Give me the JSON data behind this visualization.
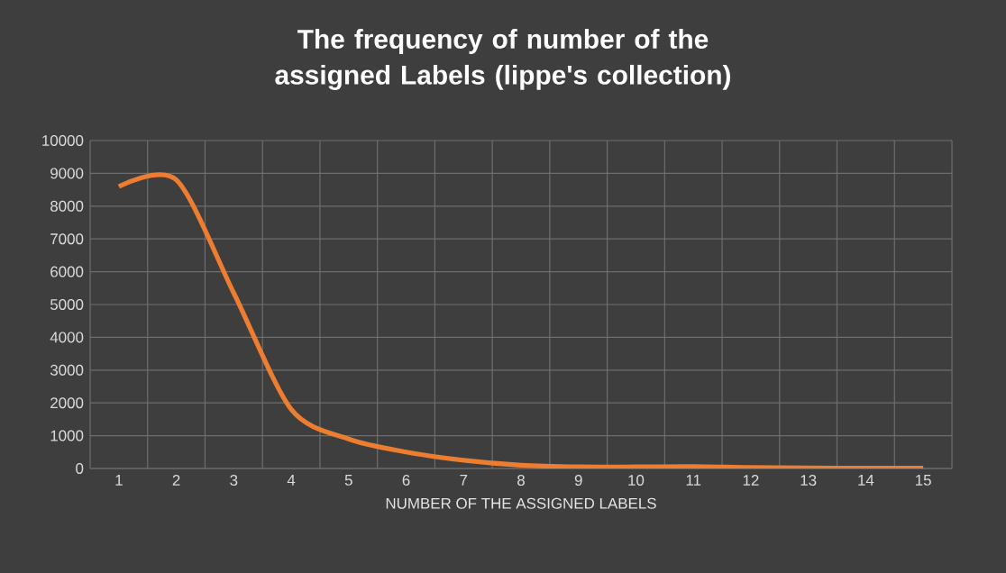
{
  "chart_data": {
    "type": "line",
    "title": "The frequency of number of the assigned Labels (lippe's collection)",
    "xlabel": "NUMBER OF THE ASSIGNED LABELS",
    "categories": [
      "1",
      "2",
      "3",
      "4",
      "5",
      "6",
      "7",
      "8",
      "9",
      "10",
      "11",
      "12",
      "13",
      "14",
      "15"
    ],
    "values": [
      8600,
      8800,
      5350,
      1800,
      900,
      500,
      250,
      100,
      50,
      50,
      60,
      30,
      20,
      10,
      10
    ],
    "color": "#ed7d31",
    "ylim": [
      0,
      10000
    ],
    "yticks": [
      0,
      1000,
      2000,
      3000,
      4000,
      5000,
      6000,
      7000,
      8000,
      9000,
      10000
    ],
    "grid": true,
    "marker": "none",
    "line_style": "solid"
  }
}
